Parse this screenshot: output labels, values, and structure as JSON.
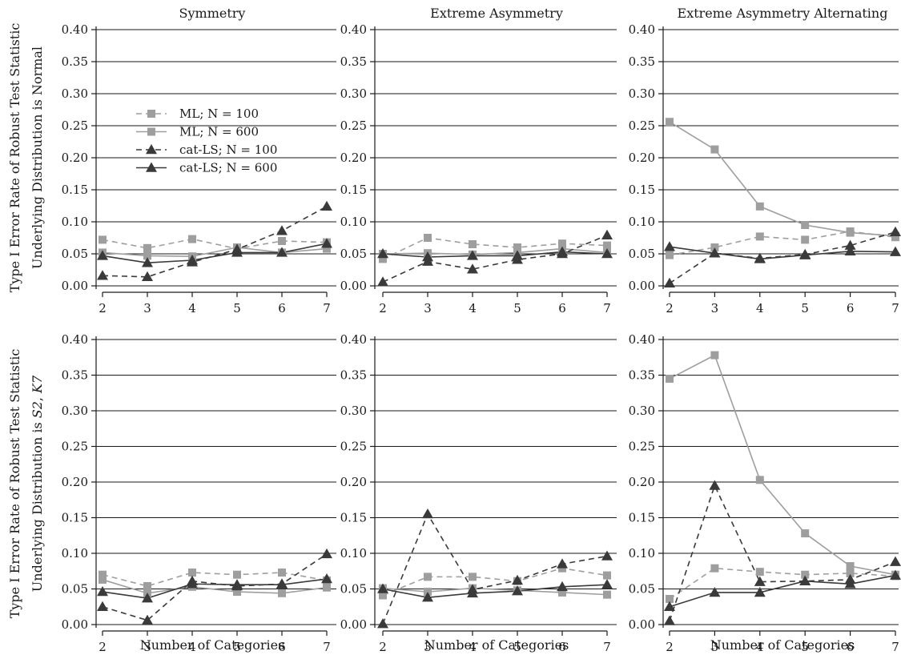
{
  "chart_data": {
    "type": "line",
    "row_labels": [
      "Type I Error Rate of Robust Test Statistic\nUnderlying Distribution is Normal",
      "Type I Error Rate of Robust Test Statistic\nUnderlying Distribution is S2, K7"
    ],
    "column_titles": [
      "Symmetry",
      "Extreme Asymmetry",
      "Extreme Asymmetry Alternating"
    ],
    "xlabel": "Number of Categories",
    "x": [
      2,
      3,
      4,
      5,
      6,
      7
    ],
    "ylim": [
      0,
      0.4
    ],
    "yticks": [
      "0.00",
      "0.05",
      "0.10",
      "0.15",
      "0.20",
      "0.25",
      "0.30",
      "0.35",
      "0.40"
    ],
    "grid": "horizontal",
    "legend": {
      "placement": "top-left of first panel",
      "entries": [
        "ML; N = 100",
        "ML; N = 600",
        "cat-LS; N = 100",
        "cat-LS; N = 600"
      ]
    },
    "series_styles": [
      {
        "name": "ML; N = 100",
        "color": "#9e9e9e",
        "dash": "dashed",
        "marker": "square"
      },
      {
        "name": "ML; N = 600",
        "color": "#9e9e9e",
        "dash": "solid",
        "marker": "square"
      },
      {
        "name": "cat-LS; N = 100",
        "color": "#3a3a3a",
        "dash": "dashed",
        "marker": "triangle"
      },
      {
        "name": "cat-LS; N = 600",
        "color": "#3a3a3a",
        "dash": "solid",
        "marker": "triangle"
      }
    ],
    "panels": [
      {
        "row": 0,
        "col": 0,
        "title": "Symmetry",
        "series": [
          {
            "name": "ML; N = 100",
            "values": [
              0.072,
              0.059,
              0.073,
              0.058,
              0.07,
              0.068
            ]
          },
          {
            "name": "ML; N = 600",
            "values": [
              0.052,
              0.047,
              0.046,
              0.06,
              0.052,
              0.058
            ]
          },
          {
            "name": "cat-LS; N = 100",
            "values": [
              0.016,
              0.014,
              0.037,
              0.057,
              0.086,
              0.124
            ]
          },
          {
            "name": "cat-LS; N = 600",
            "values": [
              0.047,
              0.036,
              0.04,
              0.052,
              0.052,
              0.066
            ]
          }
        ]
      },
      {
        "row": 0,
        "col": 1,
        "title": "Extreme Asymmetry",
        "series": [
          {
            "name": "ML; N = 100",
            "values": [
              0.042,
              0.075,
              0.065,
              0.06,
              0.066,
              0.063
            ]
          },
          {
            "name": "ML; N = 600",
            "values": [
              0.05,
              0.051,
              0.049,
              0.052,
              0.058,
              0.052
            ]
          },
          {
            "name": "cat-LS; N = 100",
            "values": [
              0.006,
              0.038,
              0.026,
              0.041,
              0.05,
              0.079
            ]
          },
          {
            "name": "cat-LS; N = 600",
            "values": [
              0.05,
              0.045,
              0.047,
              0.047,
              0.053,
              0.05
            ]
          }
        ]
      },
      {
        "row": 0,
        "col": 2,
        "title": "Extreme Asymmetry Alternating",
        "series": [
          {
            "name": "ML; N = 100",
            "values": [
              0.048,
              0.06,
              0.077,
              0.072,
              0.085,
              0.076
            ]
          },
          {
            "name": "ML; N = 600",
            "values": [
              0.256,
              0.213,
              0.124,
              0.095,
              0.083,
              0.078
            ]
          },
          {
            "name": "cat-LS; N = 100",
            "values": [
              0.004,
              0.051,
              0.043,
              0.049,
              0.063,
              0.084
            ]
          },
          {
            "name": "cat-LS; N = 600",
            "values": [
              0.061,
              0.051,
              0.042,
              0.048,
              0.054,
              0.053
            ]
          }
        ]
      },
      {
        "row": 1,
        "col": 0,
        "title": "",
        "series": [
          {
            "name": "ML; N = 100",
            "values": [
              0.07,
              0.054,
              0.073,
              0.07,
              0.073,
              0.062
            ]
          },
          {
            "name": "ML; N = 600",
            "values": [
              0.063,
              0.044,
              0.053,
              0.046,
              0.044,
              0.052
            ]
          },
          {
            "name": "cat-LS; N = 100",
            "values": [
              0.025,
              0.006,
              0.061,
              0.054,
              0.057,
              0.099
            ]
          },
          {
            "name": "cat-LS; N = 600",
            "values": [
              0.046,
              0.037,
              0.057,
              0.056,
              0.056,
              0.064
            ]
          }
        ]
      },
      {
        "row": 1,
        "col": 1,
        "title": "",
        "series": [
          {
            "name": "ML; N = 100",
            "values": [
              0.041,
              0.067,
              0.067,
              0.061,
              0.079,
              0.069
            ]
          },
          {
            "name": "ML; N = 600",
            "values": [
              0.051,
              0.046,
              0.051,
              0.048,
              0.045,
              0.042
            ]
          },
          {
            "name": "cat-LS; N = 100",
            "values": [
              0.001,
              0.155,
              0.049,
              0.062,
              0.085,
              0.096
            ]
          },
          {
            "name": "cat-LS; N = 600",
            "values": [
              0.05,
              0.038,
              0.044,
              0.047,
              0.053,
              0.056
            ]
          }
        ]
      },
      {
        "row": 1,
        "col": 2,
        "title": "",
        "series": [
          {
            "name": "ML; N = 100",
            "values": [
              0.036,
              0.079,
              0.074,
              0.07,
              0.072,
              0.068
            ]
          },
          {
            "name": "ML; N = 600",
            "values": [
              0.345,
              0.378,
              0.203,
              0.128,
              0.082,
              0.07
            ]
          },
          {
            "name": "cat-LS; N = 100",
            "values": [
              0.005,
              0.195,
              0.06,
              0.061,
              0.063,
              0.088
            ]
          },
          {
            "name": "cat-LS; N = 600",
            "values": [
              0.025,
              0.045,
              0.045,
              0.061,
              0.057,
              0.069
            ]
          }
        ]
      }
    ]
  }
}
